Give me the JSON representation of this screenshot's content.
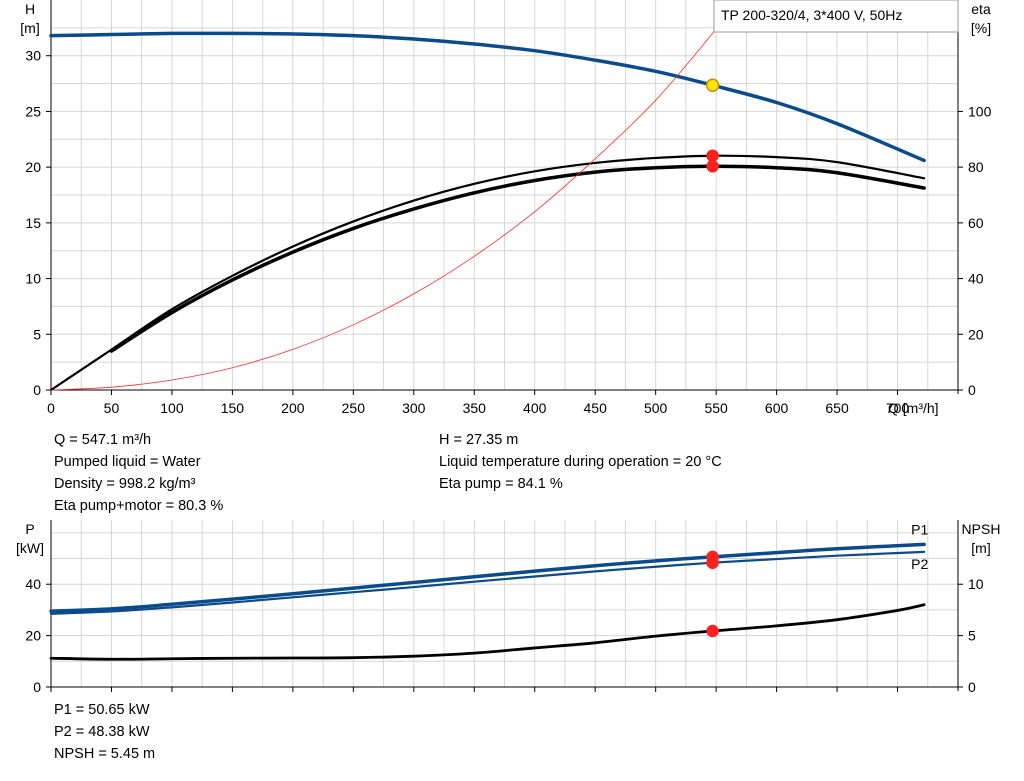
{
  "chart_data": [
    {
      "type": "line",
      "title": "TP 200-320/4, 3*400 V, 50Hz",
      "xlabel": "Q [m³/h]",
      "ylabel": [
        "H",
        "[m]"
      ],
      "y2label": [
        "eta",
        "[%]"
      ],
      "xlim": [
        0,
        750
      ],
      "ylim": [
        0,
        35
      ],
      "y2lim": [
        0,
        140
      ],
      "grid": true,
      "x_ticks": [
        0,
        50,
        100,
        150,
        200,
        250,
        300,
        350,
        400,
        450,
        500,
        550,
        600,
        650,
        700
      ],
      "y_ticks": [
        0,
        5,
        10,
        15,
        20,
        25,
        30
      ],
      "y2_ticks": [
        0,
        20,
        40,
        60,
        80,
        100
      ],
      "series": [
        {
          "axis": "left",
          "color": "#0b4a8b",
          "width": 3.5,
          "x": [
            0,
            50,
            100,
            150,
            200,
            250,
            300,
            350,
            400,
            450,
            500,
            547.1,
            600,
            650,
            722
          ],
          "values": [
            31.8,
            31.9,
            32.0,
            32.0,
            31.95,
            31.8,
            31.5,
            31.05,
            30.45,
            29.6,
            28.6,
            27.35,
            25.8,
            23.9,
            20.6
          ]
        },
        {
          "axis": "right",
          "color": "#000000",
          "width": 2.2,
          "x": [
            0,
            50,
            100,
            150,
            200,
            250,
            300,
            350,
            400,
            450,
            500,
            547.1,
            600,
            650,
            722
          ],
          "values": [
            0,
            14.5,
            29,
            41,
            51.5,
            60.5,
            68,
            74,
            78.5,
            81.5,
            83.3,
            84.1,
            83.6,
            81.8,
            76
          ]
        },
        {
          "axis": "right",
          "color": "#000000",
          "width": 3.5,
          "x": [
            50,
            100,
            150,
            200,
            250,
            300,
            350,
            400,
            450,
            500,
            547.1,
            600,
            650,
            722
          ],
          "values": [
            14,
            27.8,
            39.5,
            49.5,
            58,
            65,
            70.8,
            75.2,
            78.2,
            79.8,
            80.3,
            79.8,
            78,
            72.5
          ]
        },
        {
          "axis": "right",
          "color": "#ff2a2a",
          "width": 0.8,
          "x": [
            0,
            50,
            100,
            150,
            200,
            250,
            300,
            350,
            400,
            450,
            500,
            547.1,
            550
          ],
          "values": [
            0,
            1,
            3.6,
            8,
            14.6,
            23.4,
            34.5,
            48,
            64,
            83,
            104,
            128,
            130
          ]
        }
      ],
      "markers": [
        {
          "axis": "left",
          "x": 547.1,
          "value": 27.35,
          "fill": "#ffe600",
          "stroke": "#d08a00"
        },
        {
          "axis": "right",
          "x": 547.1,
          "value": 84.1,
          "fill": "#ff2020",
          "stroke": "#ff2020"
        },
        {
          "axis": "right",
          "x": 547.1,
          "value": 80.3,
          "fill": "#ff2020",
          "stroke": "#ff2020"
        }
      ]
    },
    {
      "type": "line",
      "ylabel": [
        "P",
        "[kW]"
      ],
      "y2label": [
        "NPSH",
        "[m]"
      ],
      "xlim": [
        0,
        750
      ],
      "ylim": [
        0,
        65
      ],
      "y2lim": [
        0,
        16.25
      ],
      "grid": true,
      "y_ticks": [
        0,
        20,
        40
      ],
      "y2_ticks": [
        0,
        5,
        10
      ],
      "series": [
        {
          "name": "P1",
          "axis": "left",
          "color": "#0b4a8b",
          "width": 3.5,
          "x": [
            0,
            50,
            100,
            150,
            200,
            250,
            300,
            350,
            400,
            450,
            500,
            547.1,
            600,
            650,
            722
          ],
          "values": [
            29.5,
            30.4,
            32.2,
            34.2,
            36.3,
            38.5,
            40.7,
            42.9,
            45.1,
            47.2,
            49.1,
            50.65,
            52.3,
            53.8,
            55.5
          ]
        },
        {
          "name": "P2",
          "axis": "left",
          "color": "#0b4a8b",
          "width": 2.2,
          "x": [
            0,
            50,
            100,
            150,
            200,
            250,
            300,
            350,
            400,
            450,
            500,
            547.1,
            600,
            650,
            722
          ],
          "values": [
            28.5,
            29.4,
            31.0,
            32.9,
            34.9,
            36.9,
            38.9,
            41.0,
            43.0,
            45.0,
            46.8,
            48.38,
            49.8,
            51.1,
            52.6
          ]
        },
        {
          "axis": "right",
          "color": "#000000",
          "width": 2.8,
          "x": [
            0,
            50,
            100,
            150,
            200,
            250,
            300,
            350,
            400,
            450,
            500,
            547.1,
            600,
            650,
            700,
            722
          ],
          "values": [
            2.8,
            2.7,
            2.75,
            2.8,
            2.82,
            2.85,
            3.0,
            3.3,
            3.8,
            4.3,
            4.95,
            5.45,
            5.95,
            6.55,
            7.45,
            8.0
          ]
        }
      ],
      "markers": [
        {
          "axis": "left",
          "x": 547.1,
          "value": 50.65,
          "fill": "#ff2020",
          "stroke": "#ff2020"
        },
        {
          "axis": "left",
          "x": 547.1,
          "value": 48.38,
          "fill": "#ff2020",
          "stroke": "#ff2020"
        },
        {
          "axis": "right",
          "x": 547.1,
          "value": 5.45,
          "fill": "#ff2020",
          "stroke": "#ff2020"
        }
      ]
    }
  ],
  "info_top_left": [
    "Q = 547.1 m³/h",
    "Pumped liquid = Water",
    "Density = 998.2 kg/m³",
    "Eta pump+motor = 80.3 %"
  ],
  "info_top_right": [
    "H = 27.35 m",
    "Liquid temperature during operation = 20 °C",
    "Eta pump = 84.1 %"
  ],
  "info_bottom": [
    "P1 = 50.65 kW",
    "P2 = 48.38 kW",
    "NPSH = 5.45 m"
  ]
}
